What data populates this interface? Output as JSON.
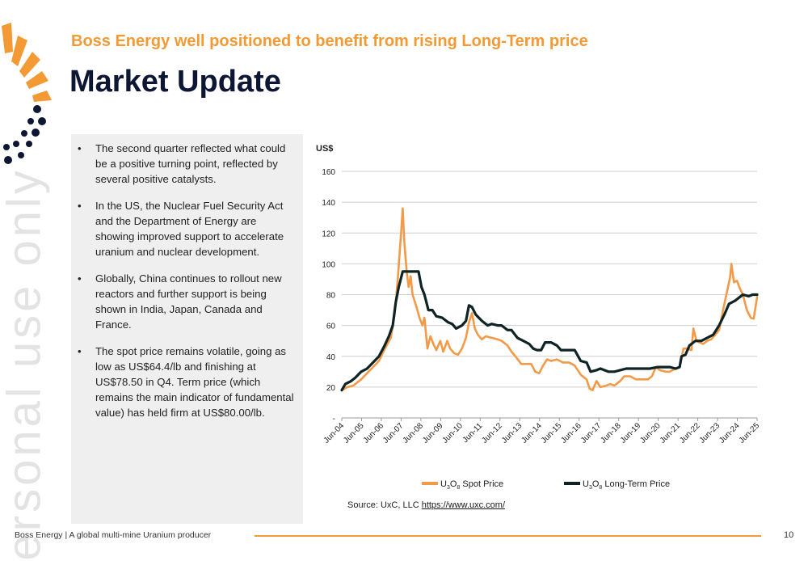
{
  "header": {
    "subtitle": "Boss Energy well positioned to benefit from rising Long-Term price",
    "title": "Market Update"
  },
  "watermark": "ersonal use only",
  "bullets": [
    "The second quarter reflected what could be a positive turning point, reflected by several positive catalysts.",
    "In the US, the Nuclear Fuel Security Act and the Department of Energy are showing improved support to accelerate uranium and nuclear development.",
    "Globally, China continues to rollout new reactors and further support is being shown in India, Japan, Canada and France.",
    "The spot price remains volatile, going as low as US$64.4/lb and finishing at US$78.50 in Q4. Term price (which remains the main indicator of fundamental value) has held firm at US$80.00/lb."
  ],
  "source": {
    "prefix": "Source: UxC, LLC ",
    "link": "https://www.uxc.com/"
  },
  "footer": {
    "left": "Boss Energy | A global multi-mine Uranium producer",
    "page": "10"
  },
  "colors": {
    "accent": "#f39a34",
    "navy": "#0d1733",
    "spot": "#f39a48",
    "term": "#0f2324"
  },
  "chart_data": {
    "type": "line",
    "ylabel": "US$",
    "ylim": [
      0,
      160
    ],
    "yticks": [
      0,
      20,
      40,
      60,
      80,
      100,
      120,
      140,
      160
    ],
    "ytick_labels": [
      "-",
      "20",
      "40",
      "60",
      "80",
      "100",
      "120",
      "140",
      "160"
    ],
    "xlim": [
      2004.42,
      2025.42
    ],
    "xtick_labels": [
      "Jun-04",
      "Jun-05",
      "Jun-06",
      "Jun-07",
      "Jun-08",
      "Jun-09",
      "Jun-10",
      "Jun-11",
      "Jun-12",
      "Jun-13",
      "Jun-14",
      "Jun-15",
      "Jun-16",
      "Jun-17",
      "Jun-18",
      "Jun-19",
      "Jun-20",
      "Jun-21",
      "Jun-22",
      "Jun-23",
      "Jun-24",
      "Jun-25"
    ],
    "grid": true,
    "legend_position": "bottom",
    "series": [
      {
        "name": "U3O8 Spot Price",
        "name_main": "U",
        "name_sub1": "3",
        "name_mid": "O",
        "name_sub2": "8",
        "name_rest": " Spot Price",
        "color": "#f39a48",
        "points": [
          [
            2004.42,
            18
          ],
          [
            2004.7,
            20
          ],
          [
            2005.0,
            21
          ],
          [
            2005.4,
            25
          ],
          [
            2005.7,
            29
          ],
          [
            2006.0,
            33
          ],
          [
            2006.3,
            37
          ],
          [
            2006.6,
            45
          ],
          [
            2006.9,
            52
          ],
          [
            2007.1,
            68
          ],
          [
            2007.25,
            90
          ],
          [
            2007.42,
            120
          ],
          [
            2007.5,
            136
          ],
          [
            2007.58,
            115
          ],
          [
            2007.7,
            95
          ],
          [
            2007.8,
            85
          ],
          [
            2007.9,
            92
          ],
          [
            2008.0,
            80
          ],
          [
            2008.2,
            72
          ],
          [
            2008.35,
            65
          ],
          [
            2008.5,
            60
          ],
          [
            2008.6,
            65
          ],
          [
            2008.75,
            45
          ],
          [
            2008.9,
            53
          ],
          [
            2009.05,
            48
          ],
          [
            2009.2,
            44
          ],
          [
            2009.4,
            50
          ],
          [
            2009.55,
            43
          ],
          [
            2009.75,
            50
          ],
          [
            2009.9,
            45
          ],
          [
            2010.1,
            42
          ],
          [
            2010.3,
            41
          ],
          [
            2010.5,
            45
          ],
          [
            2010.7,
            52
          ],
          [
            2010.85,
            62
          ],
          [
            2011.0,
            68
          ],
          [
            2011.15,
            58
          ],
          [
            2011.3,
            54
          ],
          [
            2011.5,
            51
          ],
          [
            2011.7,
            53
          ],
          [
            2012.0,
            52
          ],
          [
            2012.3,
            51
          ],
          [
            2012.5,
            50
          ],
          [
            2012.8,
            47
          ],
          [
            2013.0,
            43
          ],
          [
            2013.2,
            40
          ],
          [
            2013.5,
            35
          ],
          [
            2013.8,
            35
          ],
          [
            2014.0,
            35
          ],
          [
            2014.2,
            30
          ],
          [
            2014.4,
            29
          ],
          [
            2014.6,
            34
          ],
          [
            2014.8,
            38
          ],
          [
            2015.0,
            37
          ],
          [
            2015.3,
            38
          ],
          [
            2015.6,
            36
          ],
          [
            2015.9,
            36
          ],
          [
            2016.2,
            34
          ],
          [
            2016.5,
            28
          ],
          [
            2016.8,
            25
          ],
          [
            2016.95,
            19
          ],
          [
            2017.1,
            18
          ],
          [
            2017.3,
            24
          ],
          [
            2017.5,
            20
          ],
          [
            2017.8,
            21
          ],
          [
            2018.0,
            22
          ],
          [
            2018.2,
            21
          ],
          [
            2018.5,
            24
          ],
          [
            2018.7,
            27
          ],
          [
            2019.0,
            27
          ],
          [
            2019.3,
            25
          ],
          [
            2019.6,
            25
          ],
          [
            2019.9,
            25
          ],
          [
            2020.1,
            27
          ],
          [
            2020.3,
            33
          ],
          [
            2020.5,
            31
          ],
          [
            2020.8,
            30
          ],
          [
            2021.0,
            30
          ],
          [
            2021.3,
            32
          ],
          [
            2021.5,
            33
          ],
          [
            2021.7,
            45
          ],
          [
            2021.9,
            45
          ],
          [
            2022.1,
            44
          ],
          [
            2022.2,
            58
          ],
          [
            2022.35,
            50
          ],
          [
            2022.5,
            49
          ],
          [
            2022.7,
            48
          ],
          [
            2022.9,
            50
          ],
          [
            2023.1,
            51
          ],
          [
            2023.3,
            54
          ],
          [
            2023.5,
            57
          ],
          [
            2023.7,
            70
          ],
          [
            2023.9,
            82
          ],
          [
            2024.05,
            91
          ],
          [
            2024.12,
            100
          ],
          [
            2024.25,
            88
          ],
          [
            2024.4,
            89
          ],
          [
            2024.55,
            84
          ],
          [
            2024.7,
            80
          ],
          [
            2024.9,
            70
          ],
          [
            2025.1,
            65
          ],
          [
            2025.25,
            64.4
          ],
          [
            2025.42,
            78.5
          ]
        ]
      },
      {
        "name": "U3O8 Long-Term Price",
        "name_main": "U",
        "name_sub1": "3",
        "name_mid": "O",
        "name_sub2": "8",
        "name_rest": " Long-Term Price",
        "color": "#0f2324",
        "points": [
          [
            2004.42,
            18
          ],
          [
            2004.6,
            22
          ],
          [
            2004.9,
            24
          ],
          [
            2005.1,
            26
          ],
          [
            2005.4,
            30
          ],
          [
            2005.7,
            32
          ],
          [
            2006.0,
            36
          ],
          [
            2006.3,
            40
          ],
          [
            2006.55,
            46
          ],
          [
            2006.8,
            53
          ],
          [
            2007.0,
            60
          ],
          [
            2007.15,
            75
          ],
          [
            2007.3,
            85
          ],
          [
            2007.5,
            95
          ],
          [
            2007.7,
            95
          ],
          [
            2008.0,
            95
          ],
          [
            2008.3,
            95
          ],
          [
            2008.45,
            85
          ],
          [
            2008.6,
            80
          ],
          [
            2008.8,
            70
          ],
          [
            2009.0,
            70
          ],
          [
            2009.2,
            66
          ],
          [
            2009.5,
            65
          ],
          [
            2009.8,
            62
          ],
          [
            2010.0,
            61
          ],
          [
            2010.2,
            58
          ],
          [
            2010.5,
            60
          ],
          [
            2010.7,
            63
          ],
          [
            2010.85,
            73
          ],
          [
            2011.0,
            72
          ],
          [
            2011.2,
            67
          ],
          [
            2011.5,
            63
          ],
          [
            2011.8,
            60
          ],
          [
            2012.0,
            61
          ],
          [
            2012.3,
            60
          ],
          [
            2012.5,
            60
          ],
          [
            2012.8,
            57
          ],
          [
            2013.0,
            57
          ],
          [
            2013.3,
            52
          ],
          [
            2013.6,
            50
          ],
          [
            2013.9,
            48
          ],
          [
            2014.1,
            45
          ],
          [
            2014.3,
            44
          ],
          [
            2014.5,
            44
          ],
          [
            2014.7,
            49
          ],
          [
            2015.0,
            49
          ],
          [
            2015.3,
            47
          ],
          [
            2015.5,
            44
          ],
          [
            2015.8,
            44
          ],
          [
            2016.0,
            44
          ],
          [
            2016.2,
            44
          ],
          [
            2016.5,
            37
          ],
          [
            2016.8,
            36
          ],
          [
            2017.0,
            30
          ],
          [
            2017.3,
            31
          ],
          [
            2017.5,
            32
          ],
          [
            2017.7,
            31
          ],
          [
            2017.9,
            30
          ],
          [
            2018.2,
            30
          ],
          [
            2018.5,
            31
          ],
          [
            2018.8,
            32
          ],
          [
            2019.0,
            32
          ],
          [
            2019.5,
            32
          ],
          [
            2020.0,
            32
          ],
          [
            2020.4,
            33
          ],
          [
            2020.8,
            33
          ],
          [
            2021.0,
            33
          ],
          [
            2021.3,
            32
          ],
          [
            2021.5,
            33
          ],
          [
            2021.6,
            40
          ],
          [
            2021.8,
            41
          ],
          [
            2022.0,
            47
          ],
          [
            2022.3,
            50
          ],
          [
            2022.6,
            50
          ],
          [
            2022.9,
            52
          ],
          [
            2023.2,
            54
          ],
          [
            2023.5,
            60
          ],
          [
            2023.8,
            68
          ],
          [
            2024.0,
            74
          ],
          [
            2024.3,
            76
          ],
          [
            2024.5,
            78
          ],
          [
            2024.7,
            80
          ],
          [
            2025.0,
            79
          ],
          [
            2025.2,
            80
          ],
          [
            2025.42,
            80
          ]
        ]
      }
    ]
  }
}
